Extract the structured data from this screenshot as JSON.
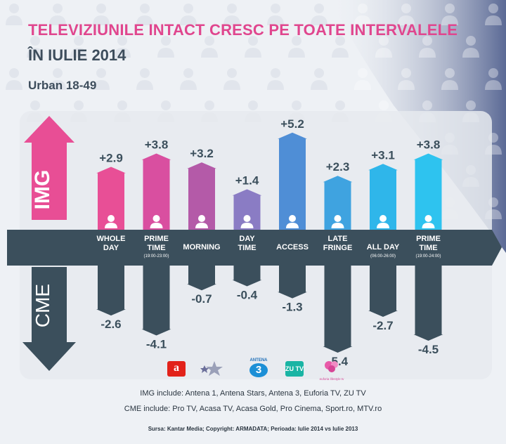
{
  "header": {
    "title_line1": "TELEVIZIUNILE INTACT CRESC PE TOATE INTERVALELE",
    "title_line2": "ÎN IULIE 2014",
    "subtitle": "Urban 18-49"
  },
  "colors": {
    "img_pink": "#e84e95",
    "band": "#3b4f5c",
    "cme_bar": "#3b4f5c",
    "title_pink": "#e0468e",
    "text_dark": "#3d4d5c"
  },
  "chart_data": {
    "type": "bar",
    "top_group_label": "IMG",
    "bottom_group_label": "CME",
    "categories": [
      {
        "line1": "WHOLE",
        "line2": "DAY",
        "note": ""
      },
      {
        "line1": "PRIME",
        "line2": "TIME",
        "note": "(19:00-23:00)"
      },
      {
        "line1": "MORNING",
        "line2": "",
        "note": ""
      },
      {
        "line1": "DAY",
        "line2": "TIME",
        "note": ""
      },
      {
        "line1": "ACCESS",
        "line2": "",
        "note": ""
      },
      {
        "line1": "LATE",
        "line2": "FRINGE",
        "note": ""
      },
      {
        "line1": "ALL DAY",
        "line2": "",
        "note": "(06:00-26:00)"
      },
      {
        "line1": "PRIME",
        "line2": "TIME",
        "note": "(19:00-24:00)"
      }
    ],
    "series": [
      {
        "name": "IMG",
        "values": [
          2.9,
          3.8,
          3.2,
          1.4,
          5.2,
          2.3,
          3.1,
          3.8
        ],
        "labels": [
          "+2.9",
          "+3.8",
          "+3.2",
          "+1.4",
          "+5.2",
          "+2.3",
          "+3.1",
          "+3.8"
        ],
        "colors": [
          "#e84f96",
          "#d94fa0",
          "#b45aa8",
          "#8a7cc4",
          "#4f8ed6",
          "#3fa3e0",
          "#2fb6ea",
          "#2ec3ef"
        ]
      },
      {
        "name": "CME",
        "values": [
          -2.6,
          -4.1,
          -0.7,
          -0.4,
          -1.3,
          -5.4,
          -2.7,
          -4.5
        ],
        "labels": [
          "-2.6",
          "-4.1",
          "-0.7",
          "-0.4",
          "-1.3",
          "-5.4",
          "-2.7",
          "-4.5"
        ]
      }
    ]
  },
  "logos": {
    "antena1": "a",
    "antena3_caption": "ANTENA",
    "antena3": "3",
    "zutv": "ZU TV",
    "euforia_caption": "euforia lifestyle tv"
  },
  "footer": {
    "img_include": "IMG include:  Antena 1, Antena Stars, Antena 3, Euforia TV, ZU TV",
    "cme_include": "CME include: Pro TV, Acasa TV, Acasa Gold, Pro Cinema, Sport.ro, MTV.ro",
    "source": "Sursa: Kantar Media;  Copyright: ARMADATA;  Perioada: Iulie 2014 vs Iulie 2013"
  }
}
